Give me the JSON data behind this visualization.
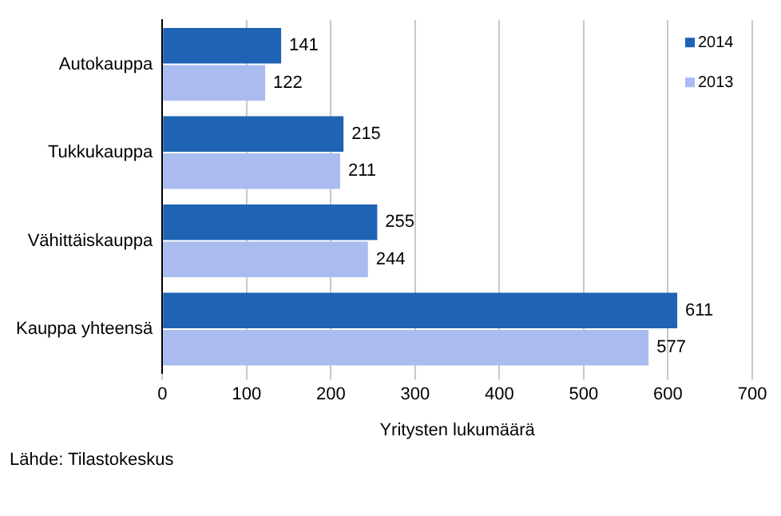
{
  "chart_data": {
    "type": "bar",
    "orientation": "horizontal",
    "categories": [
      "Autokauppa",
      "Tukkukauppa",
      "Vähittäiskauppa",
      "Kauppa yhteensä"
    ],
    "series": [
      {
        "name": "2014",
        "color": "#1f63b4",
        "values": [
          141,
          215,
          255,
          611
        ]
      },
      {
        "name": "2013",
        "color": "#a9bbef",
        "values": [
          122,
          211,
          244,
          577
        ]
      }
    ],
    "xlim": [
      0,
      700
    ],
    "xticks": [
      0,
      100,
      200,
      300,
      400,
      500,
      600,
      700
    ],
    "xlabel": "Yritysten lukumäärä",
    "grid": "x",
    "legend": "top right",
    "data_labels": true,
    "annotations": [
      "Lähde: Tilastokeskus"
    ]
  }
}
